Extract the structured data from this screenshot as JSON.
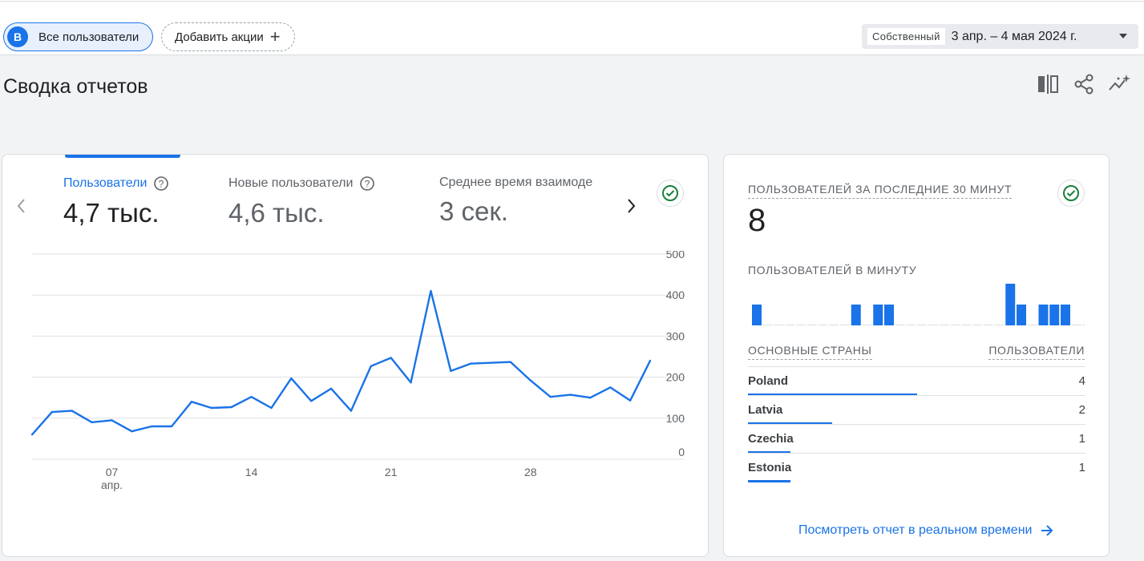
{
  "filters": {
    "segment_avatar": "B",
    "segment_label": "Все пользователи",
    "add_action_label": "Добавить акции",
    "date_mode": "Собственный",
    "date_range": "3 апр. – 4 мая 2024 г."
  },
  "page": {
    "title": "Сводка отчетов",
    "tool_icons": [
      "compare-icon",
      "share-icon",
      "insights-icon"
    ]
  },
  "metrics": [
    {
      "label": "Пользователи",
      "value": "4,7 тыс.",
      "active": true
    },
    {
      "label": "Новые пользователи",
      "value": "4,6 тыс.",
      "active": false
    },
    {
      "label": "Среднее время взаимоде",
      "value": "3 сек.",
      "active": false
    }
  ],
  "colors": {
    "accent": "#1a73e8",
    "grid": "#e0e0e0",
    "check": "#188038"
  },
  "chart_data": {
    "type": "line",
    "title": "",
    "xlabel": "",
    "ylabel": "",
    "x_tick_labels": [
      {
        "day": "07",
        "month": "апр.",
        "index": 4
      },
      {
        "day": "14",
        "month": "",
        "index": 11
      },
      {
        "day": "21",
        "month": "",
        "index": 18
      },
      {
        "day": "28",
        "month": "",
        "index": 25
      }
    ],
    "y_ticks": [
      0,
      100,
      200,
      300,
      400,
      500
    ],
    "ylim": [
      0,
      500
    ],
    "grid": true,
    "series": [
      {
        "name": "",
        "x": [
          "2024-04-03",
          "2024-04-04",
          "2024-04-05",
          "2024-04-06",
          "2024-04-07",
          "2024-04-08",
          "2024-04-09",
          "2024-04-10",
          "2024-04-11",
          "2024-04-12",
          "2024-04-13",
          "2024-04-14",
          "2024-04-15",
          "2024-04-16",
          "2024-04-17",
          "2024-04-18",
          "2024-04-19",
          "2024-04-20",
          "2024-04-21",
          "2024-04-22",
          "2024-04-23",
          "2024-04-24",
          "2024-04-25",
          "2024-04-26",
          "2024-04-27",
          "2024-04-28",
          "2024-04-29",
          "2024-04-30",
          "2024-05-01",
          "2024-05-02",
          "2024-05-03",
          "2024-05-04"
        ],
        "values": [
          60,
          115,
          118,
          90,
          95,
          68,
          80,
          80,
          140,
          125,
          127,
          152,
          125,
          197,
          142,
          172,
          118,
          227,
          247,
          187,
          410,
          215,
          233,
          235,
          237,
          192,
          152,
          157,
          150,
          175,
          143,
          240
        ]
      }
    ]
  },
  "realtime": {
    "title": "ПОЛЬЗОВАТЕЛЕЙ ЗА ПОСЛЕДНИЕ 30 МИНУТ",
    "value": "8",
    "per_minute_label": "ПОЛЬЗОВАТЕЛЕЙ В МИНУТУ",
    "per_minute": [
      1,
      0,
      0,
      0,
      0,
      0,
      0,
      0,
      0,
      1,
      0,
      1,
      1,
      0,
      0,
      0,
      0,
      0,
      0,
      0,
      0,
      0,
      0,
      2,
      1,
      0,
      1,
      1,
      1,
      0,
      0
    ],
    "countries_header": "ОСНОВНЫЕ СТРАНЫ",
    "users_header": "ПОЛЬЗОВАТЕЛИ",
    "countries": [
      {
        "name": "Poland",
        "value": "4",
        "share": 0.5
      },
      {
        "name": "Latvia",
        "value": "2",
        "share": 0.25
      },
      {
        "name": "Czechia",
        "value": "1",
        "share": 0.125
      },
      {
        "name": "Estonia",
        "value": "1",
        "share": 0.125
      }
    ],
    "link_label": "Посмотреть отчет в реальном времени"
  }
}
